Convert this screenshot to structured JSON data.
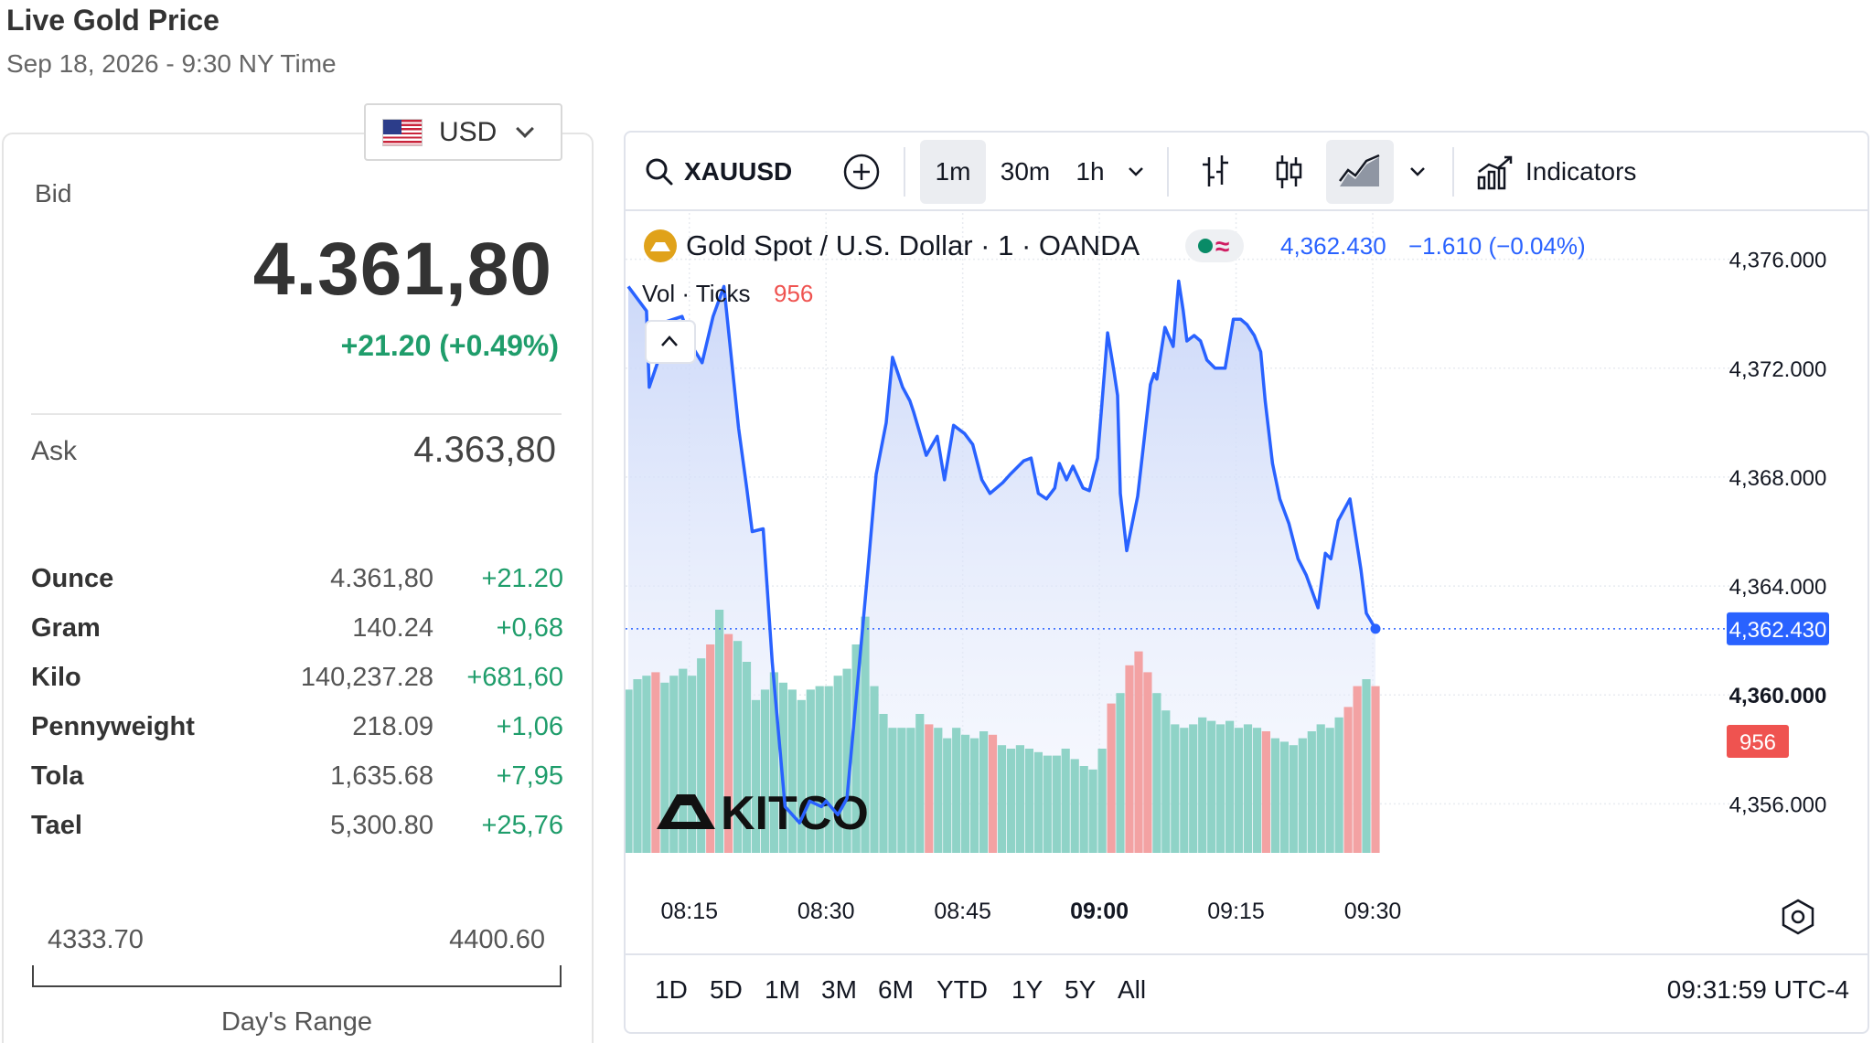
{
  "header": {
    "title": "Live Gold Price",
    "subtitle": "Sep 18, 2026 - 9:30 NY Time"
  },
  "currency": {
    "selected": "USD"
  },
  "quote": {
    "bid_label": "Bid",
    "bid": "4.361,80",
    "change": "+21.20 (+0.49%)",
    "ask_label": "Ask",
    "ask": "4.363,80"
  },
  "units": [
    {
      "name": "Ounce",
      "price": "4.361,80",
      "change": "+21.20"
    },
    {
      "name": "Gram",
      "price": "140.24",
      "change": "+0,68"
    },
    {
      "name": "Kilo",
      "price": "140,237.28",
      "change": "+681,60"
    },
    {
      "name": "Pennyweight",
      "price": "218.09",
      "change": "+1,06"
    },
    {
      "name": "Tola",
      "price": "1,635.68",
      "change": "+7,95"
    },
    {
      "name": "Tael",
      "price": "5,300.80",
      "change": "+25,76"
    }
  ],
  "day_range": {
    "low": "4333.70",
    "high": "4400.60",
    "label": "Day's Range"
  },
  "toolbar": {
    "symbol": "XAUUSD",
    "intervals": [
      "1m",
      "30m",
      "1h"
    ],
    "active_interval": "1m",
    "indicators_label": "Indicators"
  },
  "legend": {
    "title": "Gold Spot / U.S. Dollar · 1 · OANDA",
    "last": "4,362.430",
    "change": "−1.610 (−0.04%)",
    "vol_label": "Vol · Ticks",
    "vol_value": "956"
  },
  "ranges": [
    "1D",
    "5D",
    "1M",
    "3M",
    "6M",
    "YTD",
    "1Y",
    "5Y",
    "All"
  ],
  "clock": "09:31:59 UTC-4",
  "watermark": "KITCO",
  "colors": {
    "line": "#2962ff",
    "area": "#dbe4fb",
    "up": "#26a69a",
    "down": "#ef5350",
    "vol_up": "#8fd3c7",
    "vol_down": "#f3a2a3",
    "positive": "#1f9d6b"
  },
  "chart_data": {
    "type": "line",
    "series_name": "Gold Spot / U.S. Dollar",
    "x_ticks": [
      "08:15",
      "08:30",
      "08:45",
      "09:00",
      "09:15",
      "09:30"
    ],
    "x_tick_minutes": [
      15,
      30,
      45,
      60,
      75,
      90
    ],
    "y_ticks": [
      4356,
      4360,
      4364,
      4368,
      4372,
      4376
    ],
    "y_tick_labels": [
      "4,356.000",
      "4,360.000",
      "4,364.000",
      "4,368.000",
      "4,372.000",
      "4,376.000"
    ],
    "ylim": [
      4354.2,
      4377.7
    ],
    "last_value": 4362.43,
    "last_label": "4,362.430",
    "volume_last": "956",
    "price_points": [
      [
        8.3,
        4375.0
      ],
      [
        10.3,
        4374.1
      ],
      [
        10.6,
        4371.3
      ],
      [
        11.7,
        4372.4
      ],
      [
        12.4,
        4373.7
      ],
      [
        14.2,
        4373.9
      ],
      [
        15.5,
        4372.7
      ],
      [
        16.4,
        4372.2
      ],
      [
        17.6,
        4373.9
      ],
      [
        18.8,
        4375.0
      ],
      [
        19.2,
        4373.7
      ],
      [
        20.4,
        4369.8
      ],
      [
        21.3,
        4367.6
      ],
      [
        21.9,
        4366.0
      ],
      [
        23.1,
        4366.1
      ],
      [
        24.1,
        4361.2
      ],
      [
        25.5,
        4355.9
      ],
      [
        27.1,
        4355.3
      ],
      [
        28.2,
        4356.1
      ],
      [
        29.5,
        4355.9
      ],
      [
        30.0,
        4356.1
      ],
      [
        31.3,
        4355.6
      ],
      [
        32.3,
        4356.2
      ],
      [
        33.7,
        4361.3
      ],
      [
        34.6,
        4364.6
      ],
      [
        35.5,
        4368.1
      ],
      [
        36.6,
        4370.0
      ],
      [
        37.3,
        4372.4
      ],
      [
        38.4,
        4371.3
      ],
      [
        39.2,
        4370.8
      ],
      [
        39.6,
        4370.4
      ],
      [
        40.4,
        4369.5
      ],
      [
        41.0,
        4368.8
      ],
      [
        42.2,
        4369.5
      ],
      [
        43.0,
        4367.9
      ],
      [
        44.0,
        4369.9
      ],
      [
        45.2,
        4369.6
      ],
      [
        46.1,
        4369.2
      ],
      [
        47.1,
        4367.9
      ],
      [
        48.0,
        4367.4
      ],
      [
        49.4,
        4367.8
      ],
      [
        50.2,
        4368.1
      ],
      [
        51.7,
        4368.6
      ],
      [
        52.5,
        4368.7
      ],
      [
        53.3,
        4367.4
      ],
      [
        54.2,
        4367.2
      ],
      [
        55.1,
        4367.6
      ],
      [
        55.6,
        4368.5
      ],
      [
        56.4,
        4367.9
      ],
      [
        57.1,
        4368.4
      ],
      [
        58.2,
        4367.6
      ],
      [
        58.9,
        4367.5
      ],
      [
        59.8,
        4368.7
      ],
      [
        60.9,
        4373.3
      ],
      [
        61.6,
        4371.9
      ],
      [
        62.0,
        4371.0
      ],
      [
        62.3,
        4367.4
      ],
      [
        63.0,
        4365.3
      ],
      [
        64.2,
        4367.3
      ],
      [
        65.6,
        4371.4
      ],
      [
        66.0,
        4371.8
      ],
      [
        66.3,
        4371.6
      ],
      [
        67.2,
        4373.5
      ],
      [
        68.1,
        4372.8
      ],
      [
        68.7,
        4375.2
      ],
      [
        69.2,
        4374.1
      ],
      [
        69.6,
        4373.0
      ],
      [
        70.4,
        4373.2
      ],
      [
        71.1,
        4373.0
      ],
      [
        71.8,
        4372.3
      ],
      [
        72.7,
        4372.0
      ],
      [
        73.8,
        4372.0
      ],
      [
        74.7,
        4373.8
      ],
      [
        75.5,
        4373.8
      ],
      [
        76.2,
        4373.6
      ],
      [
        77.0,
        4373.2
      ],
      [
        77.7,
        4372.6
      ],
      [
        78.2,
        4370.8
      ],
      [
        79.0,
        4368.5
      ],
      [
        79.8,
        4367.2
      ],
      [
        80.8,
        4366.3
      ],
      [
        81.8,
        4365.0
      ],
      [
        82.7,
        4364.4
      ],
      [
        84.0,
        4363.2
      ],
      [
        84.8,
        4365.2
      ],
      [
        85.4,
        4365.0
      ],
      [
        86.2,
        4366.4
      ],
      [
        87.5,
        4367.2
      ],
      [
        88.7,
        4364.6
      ],
      [
        89.3,
        4363.0
      ],
      [
        90.3,
        4362.43
      ]
    ],
    "volume": [
      [
        8.3,
        47,
        "up"
      ],
      [
        9.3,
        50,
        "up"
      ],
      [
        10.3,
        51,
        "up"
      ],
      [
        11.3,
        52,
        "down"
      ],
      [
        12.3,
        49,
        "up"
      ],
      [
        13.3,
        51,
        "up"
      ],
      [
        14.3,
        53,
        "up"
      ],
      [
        15.3,
        51,
        "up"
      ],
      [
        16.3,
        56,
        "up"
      ],
      [
        17.3,
        60,
        "down"
      ],
      [
        18.3,
        70,
        "up"
      ],
      [
        19.3,
        63,
        "down"
      ],
      [
        20.3,
        61,
        "up"
      ],
      [
        21.3,
        55,
        "up"
      ],
      [
        22.3,
        44,
        "up"
      ],
      [
        23.3,
        47,
        "up"
      ],
      [
        24.3,
        52,
        "up"
      ],
      [
        25.3,
        49,
        "up"
      ],
      [
        26.3,
        47,
        "up"
      ],
      [
        27.3,
        44,
        "up"
      ],
      [
        28.3,
        47,
        "up"
      ],
      [
        29.3,
        48,
        "up"
      ],
      [
        30.3,
        48,
        "up"
      ],
      [
        31.3,
        51,
        "up"
      ],
      [
        32.3,
        53,
        "up"
      ],
      [
        33.3,
        60,
        "up"
      ],
      [
        34.3,
        68,
        "up"
      ],
      [
        35.3,
        48,
        "up"
      ],
      [
        36.3,
        40,
        "up"
      ],
      [
        37.3,
        36,
        "up"
      ],
      [
        38.3,
        36,
        "up"
      ],
      [
        39.3,
        36,
        "up"
      ],
      [
        40.3,
        40,
        "up"
      ],
      [
        41.3,
        37,
        "down"
      ],
      [
        42.3,
        36,
        "up"
      ],
      [
        43.3,
        33,
        "up"
      ],
      [
        44.3,
        36,
        "up"
      ],
      [
        45.3,
        34,
        "up"
      ],
      [
        46.3,
        33,
        "up"
      ],
      [
        47.3,
        35,
        "up"
      ],
      [
        48.3,
        34,
        "down"
      ],
      [
        49.3,
        31,
        "up"
      ],
      [
        50.3,
        30,
        "up"
      ],
      [
        51.3,
        31,
        "up"
      ],
      [
        52.3,
        30,
        "up"
      ],
      [
        53.3,
        29,
        "up"
      ],
      [
        54.3,
        28,
        "up"
      ],
      [
        55.3,
        28,
        "up"
      ],
      [
        56.3,
        30,
        "up"
      ],
      [
        57.3,
        27,
        "up"
      ],
      [
        58.3,
        25,
        "up"
      ],
      [
        59.3,
        24,
        "up"
      ],
      [
        60.3,
        30,
        "up"
      ],
      [
        61.3,
        43,
        "down"
      ],
      [
        62.3,
        46,
        "up"
      ],
      [
        63.3,
        54,
        "down"
      ],
      [
        64.3,
        58,
        "down"
      ],
      [
        65.3,
        52,
        "down"
      ],
      [
        66.3,
        46,
        "up"
      ],
      [
        67.3,
        41,
        "up"
      ],
      [
        68.3,
        37,
        "up"
      ],
      [
        69.3,
        36,
        "up"
      ],
      [
        70.3,
        37,
        "up"
      ],
      [
        71.3,
        39,
        "up"
      ],
      [
        72.3,
        38,
        "up"
      ],
      [
        73.3,
        37,
        "up"
      ],
      [
        74.3,
        38,
        "up"
      ],
      [
        75.3,
        36,
        "up"
      ],
      [
        76.3,
        37,
        "up"
      ],
      [
        77.3,
        36,
        "up"
      ],
      [
        78.3,
        35,
        "down"
      ],
      [
        79.3,
        33,
        "up"
      ],
      [
        80.3,
        32,
        "up"
      ],
      [
        81.3,
        31,
        "up"
      ],
      [
        82.3,
        33,
        "up"
      ],
      [
        83.3,
        35,
        "up"
      ],
      [
        84.3,
        37,
        "up"
      ],
      [
        85.3,
        36,
        "up"
      ],
      [
        86.3,
        39,
        "up"
      ],
      [
        87.3,
        42,
        "down"
      ],
      [
        88.3,
        48,
        "down"
      ],
      [
        89.3,
        50,
        "up"
      ],
      [
        90.3,
        48,
        "down"
      ]
    ]
  }
}
